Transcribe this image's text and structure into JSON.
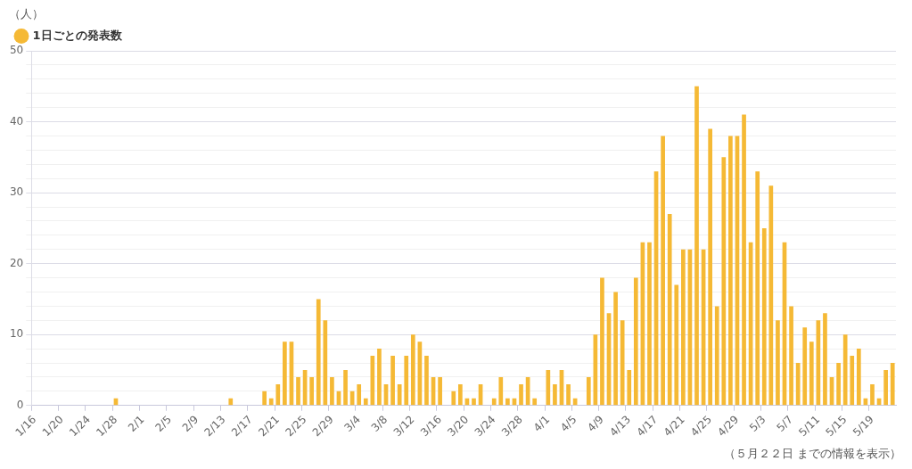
{
  "chart_data": {
    "type": "bar",
    "ylabel": "（人）",
    "legend": "top left",
    "grid": "y",
    "categories": [
      "1/16",
      null,
      null,
      null,
      "1/20",
      null,
      null,
      null,
      "1/24",
      null,
      null,
      null,
      "1/28",
      null,
      null,
      null,
      "2/1",
      null,
      null,
      null,
      "2/5",
      null,
      null,
      null,
      "2/9",
      null,
      null,
      null,
      "2/13",
      null,
      null,
      null,
      "2/17",
      null,
      null,
      null,
      "2/21",
      null,
      null,
      null,
      "2/25",
      null,
      null,
      null,
      "2/29",
      null,
      null,
      null,
      "3/4",
      null,
      null,
      null,
      "3/8",
      null,
      null,
      null,
      "3/12",
      null,
      null,
      null,
      "3/16",
      null,
      null,
      null,
      "3/20",
      null,
      null,
      null,
      "3/24",
      null,
      null,
      null,
      "3/28",
      null,
      null,
      null,
      "4/1",
      null,
      null,
      null,
      "4/5",
      null,
      null,
      null,
      "4/9",
      null,
      null,
      null,
      "4/13",
      null,
      null,
      null,
      "4/17",
      null,
      null,
      null,
      "4/21",
      null,
      null,
      null,
      "4/25",
      null,
      null,
      null,
      "4/29",
      null,
      null,
      null,
      "5/3",
      null,
      null,
      null,
      "5/7",
      null,
      null,
      null,
      "5/11",
      null,
      null,
      null,
      "5/15",
      null,
      null,
      null,
      "5/19",
      null,
      null,
      null
    ],
    "series": [
      {
        "name": "1日ごとの発表数",
        "color": "#f5b935",
        "values": [
          0,
          0,
          0,
          0,
          0,
          0,
          0,
          0,
          0,
          0,
          0,
          0,
          1,
          0,
          0,
          0,
          0,
          0,
          0,
          0,
          0,
          0,
          0,
          0,
          0,
          0,
          0,
          0,
          0,
          1,
          0,
          0,
          0,
          0,
          2,
          1,
          3,
          9,
          9,
          4,
          5,
          4,
          15,
          12,
          4,
          2,
          5,
          2,
          3,
          1,
          7,
          8,
          3,
          7,
          3,
          7,
          10,
          9,
          7,
          4,
          4,
          0,
          2,
          3,
          1,
          1,
          3,
          0,
          1,
          4,
          1,
          1,
          3,
          4,
          1,
          0,
          5,
          3,
          5,
          3,
          1,
          0,
          4,
          10,
          18,
          13,
          16,
          12,
          5,
          18,
          23,
          23,
          33,
          38,
          27,
          17,
          22,
          22,
          45,
          22,
          39,
          14,
          35,
          38,
          38,
          41,
          23,
          33,
          25,
          31,
          12,
          23,
          14,
          6,
          11,
          9,
          12,
          13,
          4,
          6,
          10,
          7,
          8,
          1,
          3,
          1,
          5,
          6
        ]
      }
    ],
    "ylim": [
      0,
      50
    ],
    "yticks": [
      0,
      {
        "value": 2,
        "label": null
      },
      {
        "value": 4,
        "label": null
      },
      {
        "value": 6,
        "label": null
      },
      {
        "value": 8,
        "label": null
      },
      10,
      {
        "value": 12,
        "label": null
      },
      {
        "value": 14,
        "label": null
      },
      {
        "value": 16,
        "label": null
      },
      {
        "value": 18,
        "label": null
      },
      20,
      {
        "value": 22,
        "label": null
      },
      {
        "value": 24,
        "label": null
      },
      {
        "value": 26,
        "label": null
      },
      {
        "value": 28,
        "label": null
      },
      30,
      {
        "value": 32,
        "label": null
      },
      {
        "value": 34,
        "label": null
      },
      {
        "value": 36,
        "label": null
      },
      {
        "value": 38,
        "label": null
      },
      40,
      {
        "value": 42,
        "label": null
      },
      {
        "value": 44,
        "label": null
      },
      {
        "value": 46,
        "label": null
      },
      {
        "value": 48,
        "label": null
      },
      50
    ],
    "annotations": [
      "（５月２２日 までの情報を表示）"
    ]
  }
}
